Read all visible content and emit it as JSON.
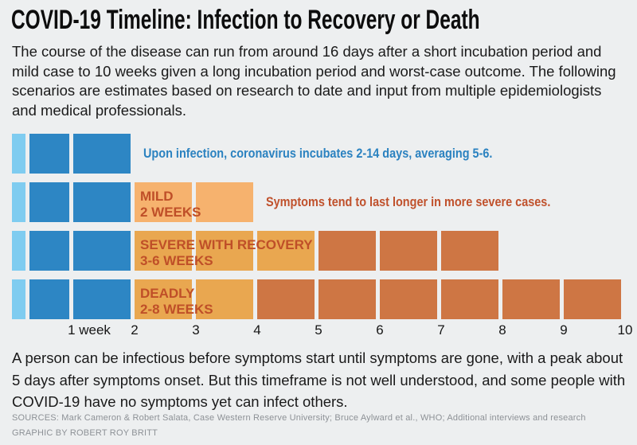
{
  "title": "COVID-19 Timeline: Infection to Recovery or Death",
  "intro": "The course of the disease can run from around 16 days after a short incubation period and mild case to 10 weeks given a long incubation period and worst-case outcome. The following scenarios are estimates based on research to date and input from multiple epidemiologists and medical professionals.",
  "outro": "A person can be infectious before symptoms start until symptoms are gone, with a peak about 5 days after symptoms onset. But this timeframe is not well understood, and some people with COVID-19 have no symptoms yet can infect others.",
  "footer": {
    "sources": "SOURCES: Mark Cameron & Robert Salata, Case Western Reserve University; Bruce Aylward et al., WHO; Additional interviews and research",
    "credit": "GRAPHIC BY ROBERT ROY BRITT"
  },
  "colors": {
    "background": "#edeff0",
    "incubation_min_blue": "#7fccf0",
    "incubation_blue": "#2d86c4",
    "mild_orange": "#f6b26e",
    "symptom_min_orange": "#e9a750",
    "symptom_max_orange": "#ce7644",
    "bar_label_red": "#bf4f28",
    "annotation_blue": "#2b82c0",
    "annotation_red": "#c0512c",
    "text_black": "#1a1a1a",
    "footer_gray": "#8d9196"
  },
  "chart_data": {
    "type": "timeline-bar",
    "x_axis": {
      "unit": "weeks",
      "range": [
        0,
        10
      ],
      "ticks": [
        "1 week",
        "2",
        "3",
        "4",
        "5",
        "6",
        "7",
        "8",
        "9",
        "10"
      ]
    },
    "incubation": {
      "min_days": 2,
      "max_days": 14,
      "weeks_shown": 2,
      "note": "Upon infection, coronavirus incubates 2-14 days, averaging 5-6."
    },
    "rows": [
      {
        "id": "incubation",
        "label": "",
        "sublabel": "",
        "incubation_weeks": 2,
        "symptom_min_weeks": 0,
        "symptom_max_weeks": 0,
        "tone": "none",
        "annotation": "Upon infection, coronavirus incubates 2-14 days, averaging 5-6.",
        "annotation_color": "blue"
      },
      {
        "id": "mild",
        "label": "MILD",
        "sublabel": "2 WEEKS",
        "incubation_weeks": 2,
        "symptom_min_weeks": 2,
        "symptom_max_weeks": 2,
        "tone": "mild",
        "annotation": "Symptoms tend to last longer in more severe cases.",
        "annotation_color": "red"
      },
      {
        "id": "severe-with-recovery",
        "label": "SEVERE WITH RECOVERY",
        "sublabel": "3-6 WEEKS",
        "incubation_weeks": 2,
        "symptom_min_weeks": 3,
        "symptom_max_weeks": 6,
        "tone": "severe",
        "annotation": "",
        "annotation_color": ""
      },
      {
        "id": "deadly",
        "label": "DEADLY",
        "sublabel": "2-8 WEEKS",
        "incubation_weeks": 2,
        "symptom_min_weeks": 2,
        "symptom_max_weeks": 8,
        "tone": "severe",
        "annotation": "",
        "annotation_color": ""
      }
    ]
  }
}
